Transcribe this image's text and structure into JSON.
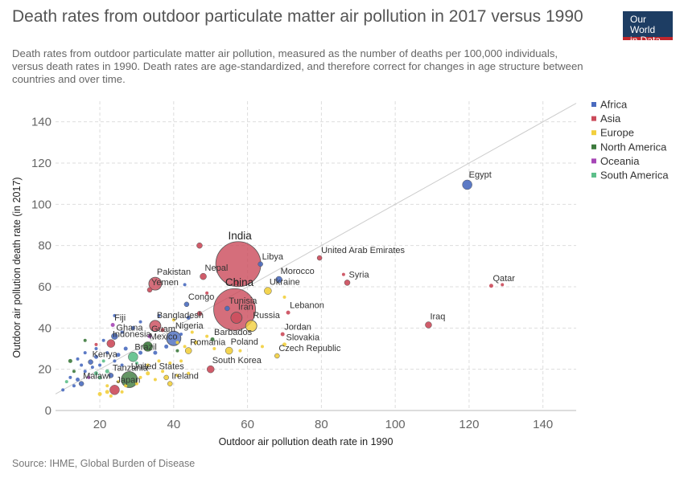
{
  "header": {
    "title": "Death rates from outdoor particulate matter air pollution in 2017 versus 1990",
    "subtitle_lines": [
      "Death rates from outdoor particulate matter air pollution, measured as the number of deaths per 100,000 individuals,",
      "versus death rates in 1990. Death rates are age-standardized, and therefore correct for changes in age structure between",
      "countries and over time."
    ],
    "logo_line1": "Our World",
    "logo_line2": "in Data"
  },
  "footer": {
    "source": "Source: IHME, Global Burden of Disease"
  },
  "colors": {
    "Africa": "#4a6bbf",
    "Asia": "#cb4a5a",
    "Europe": "#f2cf3d",
    "North America": "#3d7a3d",
    "Oceania": "#a646b6",
    "South America": "#5dbf8a",
    "gridline": "#dddddd",
    "diagonal": "#cccccc"
  },
  "chart_data": {
    "type": "scatter",
    "title": "Death rates from outdoor particulate matter air pollution in 2017 versus 1990",
    "xlabel": "Outdoor air pollution death rate in 1990",
    "ylabel": "Outdoor air pollution death rate (in 2017)",
    "xlim": [
      8,
      149
    ],
    "ylim": [
      0,
      150
    ],
    "xticks": [
      20,
      40,
      60,
      80,
      100,
      120,
      140
    ],
    "yticks": [
      0,
      20,
      40,
      60,
      80,
      100,
      120,
      140
    ],
    "grid": true,
    "diagonal_line": true,
    "legend_position": "right",
    "legend": [
      "Africa",
      "Asia",
      "Europe",
      "North America",
      "Oceania",
      "South America"
    ],
    "labeled_points": [
      {
        "label": "Egypt",
        "x": 119.5,
        "y": 109.5,
        "region": "Africa",
        "size": 6
      },
      {
        "label": "India",
        "x": 57.5,
        "y": 71,
        "region": "Asia",
        "size": 28
      },
      {
        "label": "China",
        "x": 56.5,
        "y": 49,
        "region": "Asia",
        "size": 26
      },
      {
        "label": "United Arab Emirates",
        "x": 79.5,
        "y": 74,
        "region": "Asia",
        "size": 3
      },
      {
        "label": "Libya",
        "x": 63.5,
        "y": 71,
        "region": "Africa",
        "size": 3
      },
      {
        "label": "Morocco",
        "x": 68.5,
        "y": 63.5,
        "region": "Africa",
        "size": 4
      },
      {
        "label": "Syria",
        "x": 87,
        "y": 62,
        "region": "Asia",
        "size": 3.5
      },
      {
        "label": "Qatar",
        "x": 126,
        "y": 60.5,
        "region": "Asia",
        "size": 2.5
      },
      {
        "label": "Nepal",
        "x": 48,
        "y": 65,
        "region": "Asia",
        "size": 4
      },
      {
        "label": "Pakistan",
        "x": 35,
        "y": 61.5,
        "region": "Asia",
        "size": 8
      },
      {
        "label": "Yemen",
        "x": 33.5,
        "y": 58.5,
        "region": "Asia",
        "size": 3
      },
      {
        "label": "Ukraine",
        "x": 65.5,
        "y": 58,
        "region": "Europe",
        "size": 4.5
      },
      {
        "label": "Congo",
        "x": 43.5,
        "y": 51.5,
        "region": "Africa",
        "size": 3
      },
      {
        "label": "Tunisia",
        "x": 54.5,
        "y": 49.5,
        "region": "Africa",
        "size": 3
      },
      {
        "label": "Lebanon",
        "x": 71,
        "y": 47.5,
        "region": "Asia",
        "size": 2.5
      },
      {
        "label": "Iran",
        "x": 57,
        "y": 45,
        "region": "Asia",
        "size": 7
      },
      {
        "label": "Russia",
        "x": 61,
        "y": 41,
        "region": "Europe",
        "size": 7
      },
      {
        "label": "Iraq",
        "x": 109,
        "y": 41.5,
        "region": "Asia",
        "size": 4
      },
      {
        "label": "Bangladesh",
        "x": 35,
        "y": 41,
        "region": "Asia",
        "size": 7
      },
      {
        "label": "Fiji",
        "x": 23.5,
        "y": 41.5,
        "region": "Oceania",
        "size": 2.5
      },
      {
        "label": "Jordan",
        "x": 69.5,
        "y": 37,
        "region": "Asia",
        "size": 2.5
      },
      {
        "label": "Nigeria",
        "x": 40,
        "y": 35,
        "region": "Africa",
        "size": 9
      },
      {
        "label": "Ghana",
        "x": 24,
        "y": 36,
        "region": "Africa",
        "size": 4
      },
      {
        "label": "Guam",
        "x": 33.5,
        "y": 36,
        "region": "Oceania",
        "size": 2.5
      },
      {
        "label": "Barbados",
        "x": 50.5,
        "y": 34.5,
        "region": "North America",
        "size": 2.5
      },
      {
        "label": "Slovakia",
        "x": 70,
        "y": 32,
        "region": "Europe",
        "size": 2.5
      },
      {
        "label": "Indonesia",
        "x": 23,
        "y": 32.5,
        "region": "Asia",
        "size": 5
      },
      {
        "label": "Mexico",
        "x": 33,
        "y": 31,
        "region": "North America",
        "size": 6
      },
      {
        "label": "Romania",
        "x": 44,
        "y": 29,
        "region": "Europe",
        "size": 4
      },
      {
        "label": "Poland",
        "x": 55,
        "y": 29,
        "region": "Europe",
        "size": 4.5
      },
      {
        "label": "Czech Republic",
        "x": 68,
        "y": 26.5,
        "region": "Europe",
        "size": 3
      },
      {
        "label": "Brazil",
        "x": 29,
        "y": 26,
        "region": "South America",
        "size": 6
      },
      {
        "label": "Kenya",
        "x": 17.5,
        "y": 23.5,
        "region": "Africa",
        "size": 3
      },
      {
        "label": "South Korea",
        "x": 50,
        "y": 20,
        "region": "Asia",
        "size": 4.5
      },
      {
        "label": "Tanzania",
        "x": 23,
        "y": 17,
        "region": "Africa",
        "size": 3
      },
      {
        "label": "United States",
        "x": 28,
        "y": 15,
        "region": "North America",
        "size": 10
      },
      {
        "label": "Ireland",
        "x": 39,
        "y": 13,
        "region": "Europe",
        "size": 3
      },
      {
        "label": "Malawi",
        "x": 15,
        "y": 13,
        "region": "Africa",
        "size": 3
      },
      {
        "label": "Japan",
        "x": 24,
        "y": 10,
        "region": "Asia",
        "size": 6
      }
    ],
    "unlabeled_points": [
      {
        "x": 47,
        "y": 80,
        "region": "Asia",
        "size": 3.5
      },
      {
        "x": 57,
        "y": 62,
        "region": "Asia",
        "size": 3
      },
      {
        "x": 86,
        "y": 66,
        "region": "Asia",
        "size": 2
      },
      {
        "x": 129,
        "y": 61,
        "region": "Asia",
        "size": 2
      },
      {
        "x": 43,
        "y": 61,
        "region": "Africa",
        "size": 2
      },
      {
        "x": 49,
        "y": 57,
        "region": "Asia",
        "size": 2
      },
      {
        "x": 70,
        "y": 55,
        "region": "Europe",
        "size": 2
      },
      {
        "x": 47,
        "y": 47,
        "region": "Asia",
        "size": 3
      },
      {
        "x": 44,
        "y": 45,
        "region": "Africa",
        "size": 2.5
      },
      {
        "x": 40,
        "y": 44,
        "region": "Europe",
        "size": 2
      },
      {
        "x": 36,
        "y": 46,
        "region": "Africa",
        "size": 2
      },
      {
        "x": 31,
        "y": 43,
        "region": "Africa",
        "size": 2
      },
      {
        "x": 37,
        "y": 39,
        "region": "Asia",
        "size": 2.5
      },
      {
        "x": 45,
        "y": 38,
        "region": "Europe",
        "size": 2
      },
      {
        "x": 49,
        "y": 36,
        "region": "Europe",
        "size": 2
      },
      {
        "x": 42,
        "y": 37,
        "region": "Africa",
        "size": 2
      },
      {
        "x": 46,
        "y": 33,
        "region": "Europe",
        "size": 2.5
      },
      {
        "x": 41,
        "y": 33,
        "region": "Europe",
        "size": 2
      },
      {
        "x": 38,
        "y": 31,
        "region": "Africa",
        "size": 2.5
      },
      {
        "x": 43,
        "y": 31,
        "region": "Europe",
        "size": 2
      },
      {
        "x": 51,
        "y": 30,
        "region": "Europe",
        "size": 2
      },
      {
        "x": 58,
        "y": 29,
        "region": "Europe",
        "size": 2
      },
      {
        "x": 64,
        "y": 31,
        "region": "Europe",
        "size": 2
      },
      {
        "x": 41,
        "y": 29,
        "region": "North America",
        "size": 2
      },
      {
        "x": 35,
        "y": 28,
        "region": "Africa",
        "size": 2.5
      },
      {
        "x": 31,
        "y": 28,
        "region": "Africa",
        "size": 2.5
      },
      {
        "x": 27,
        "y": 30,
        "region": "Africa",
        "size": 2.5
      },
      {
        "x": 25,
        "y": 27,
        "region": "Africa",
        "size": 2.5
      },
      {
        "x": 22,
        "y": 28,
        "region": "Africa",
        "size": 2
      },
      {
        "x": 19,
        "y": 30,
        "region": "Africa",
        "size": 2
      },
      {
        "x": 16,
        "y": 28,
        "region": "Africa",
        "size": 2
      },
      {
        "x": 14,
        "y": 25,
        "region": "Africa",
        "size": 2
      },
      {
        "x": 12,
        "y": 24,
        "region": "North America",
        "size": 2.5
      },
      {
        "x": 19,
        "y": 26,
        "region": "Africa",
        "size": 2.5
      },
      {
        "x": 21,
        "y": 24,
        "region": "South America",
        "size": 2
      },
      {
        "x": 24,
        "y": 24,
        "region": "Africa",
        "size": 2
      },
      {
        "x": 26,
        "y": 22,
        "region": "Africa",
        "size": 2
      },
      {
        "x": 30,
        "y": 23,
        "region": "South America",
        "size": 2
      },
      {
        "x": 33,
        "y": 22,
        "region": "Europe",
        "size": 2
      },
      {
        "x": 36,
        "y": 24,
        "region": "Europe",
        "size": 2
      },
      {
        "x": 39,
        "y": 23,
        "region": "Europe",
        "size": 2
      },
      {
        "x": 42,
        "y": 24,
        "region": "Europe",
        "size": 2
      },
      {
        "x": 37,
        "y": 19,
        "region": "Europe",
        "size": 2
      },
      {
        "x": 33,
        "y": 18,
        "region": "Europe",
        "size": 2.5
      },
      {
        "x": 31,
        "y": 16,
        "region": "Europe",
        "size": 2
      },
      {
        "x": 35,
        "y": 15,
        "region": "Europe",
        "size": 2
      },
      {
        "x": 38,
        "y": 16,
        "region": "Europe",
        "size": 3
      },
      {
        "x": 41,
        "y": 17,
        "region": "Europe",
        "size": 2
      },
      {
        "x": 44,
        "y": 18,
        "region": "Europe",
        "size": 2
      },
      {
        "x": 30,
        "y": 13,
        "region": "Europe",
        "size": 2
      },
      {
        "x": 27,
        "y": 12,
        "region": "Europe",
        "size": 2
      },
      {
        "x": 25,
        "y": 14,
        "region": "Europe",
        "size": 2
      },
      {
        "x": 22,
        "y": 12,
        "region": "Europe",
        "size": 2
      },
      {
        "x": 20,
        "y": 8,
        "region": "Europe",
        "size": 2.5
      },
      {
        "x": 22,
        "y": 9,
        "region": "Europe",
        "size": 2.5
      },
      {
        "x": 26,
        "y": 9,
        "region": "Europe",
        "size": 2
      },
      {
        "x": 23,
        "y": 7,
        "region": "Europe",
        "size": 2
      },
      {
        "x": 20,
        "y": 16,
        "region": "South America",
        "size": 2.5
      },
      {
        "x": 19,
        "y": 18,
        "region": "South America",
        "size": 2.5
      },
      {
        "x": 22,
        "y": 19,
        "region": "South America",
        "size": 2.5
      },
      {
        "x": 17,
        "y": 16,
        "region": "Oceania",
        "size": 2
      },
      {
        "x": 16,
        "y": 19,
        "region": "Africa",
        "size": 2
      },
      {
        "x": 14,
        "y": 15,
        "region": "Africa",
        "size": 2.5
      },
      {
        "x": 13,
        "y": 12,
        "region": "Africa",
        "size": 2
      },
      {
        "x": 11,
        "y": 14,
        "region": "South America",
        "size": 2
      },
      {
        "x": 10,
        "y": 10,
        "region": "Africa",
        "size": 2
      },
      {
        "x": 12,
        "y": 16,
        "region": "Africa",
        "size": 2
      },
      {
        "x": 15,
        "y": 22,
        "region": "Africa",
        "size": 2
      },
      {
        "x": 18,
        "y": 21,
        "region": "Africa",
        "size": 2
      },
      {
        "x": 20,
        "y": 22,
        "region": "Africa",
        "size": 2
      },
      {
        "x": 13,
        "y": 19,
        "region": "North America",
        "size": 2
      },
      {
        "x": 21,
        "y": 34,
        "region": "Africa",
        "size": 2
      },
      {
        "x": 26,
        "y": 38,
        "region": "Africa",
        "size": 2
      },
      {
        "x": 29,
        "y": 40,
        "region": "Africa",
        "size": 2.5
      },
      {
        "x": 24,
        "y": 46,
        "region": "Africa",
        "size": 2
      },
      {
        "x": 16,
        "y": 34,
        "region": "North America",
        "size": 2
      },
      {
        "x": 19,
        "y": 32,
        "region": "Asia",
        "size": 2
      }
    ]
  }
}
